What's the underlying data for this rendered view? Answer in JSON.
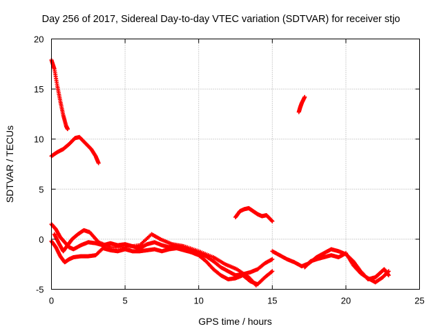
{
  "chart_data": {
    "type": "scatter",
    "title": "Day 256 of 2017, Sidereal Day-to-day VTEC variation (SDTVAR) for receiver stjo",
    "xlabel": "GPS time / hours",
    "ylabel": "SDTVAR / TECUs",
    "xlim": [
      0,
      25
    ],
    "ylim": [
      -5,
      20
    ],
    "xticks": [
      "0",
      "5",
      "10",
      "15",
      "20",
      "25"
    ],
    "yticks": [
      "-5",
      "0",
      "5",
      "10",
      "15",
      "20"
    ],
    "grid": true,
    "marker": "+",
    "color": "#ff0000",
    "series": [
      {
        "name": "upper-decay",
        "x": [
          0.0,
          0.2,
          0.4,
          0.6,
          0.8,
          1.0,
          1.1
        ],
        "y": [
          17.9,
          17.0,
          15.3,
          13.8,
          12.4,
          11.3,
          11.0
        ]
      },
      {
        "name": "arc-8-10",
        "x": [
          0.0,
          0.4,
          0.8,
          1.2,
          1.6,
          1.9,
          2.3,
          2.7,
          3.0,
          3.2
        ],
        "y": [
          8.3,
          8.7,
          9.0,
          9.5,
          10.1,
          10.2,
          9.6,
          9.0,
          8.3,
          7.6
        ]
      },
      {
        "name": "arc-13-14",
        "x": [
          16.8,
          16.9,
          17.0,
          17.2
        ],
        "y": [
          12.7,
          13.2,
          13.6,
          14.2
        ]
      },
      {
        "name": "arc-2-3",
        "x": [
          12.5,
          12.8,
          13.1,
          13.4,
          13.7,
          14.0,
          14.3,
          14.6,
          15.0
        ],
        "y": [
          2.2,
          2.8,
          3.0,
          3.1,
          2.8,
          2.5,
          2.3,
          2.4,
          1.8
        ]
      },
      {
        "name": "negative-band-a",
        "x": [
          0.0,
          0.3,
          0.6,
          0.9,
          1.2,
          1.5,
          2.0,
          2.5,
          3.0,
          3.5,
          4.0,
          4.5,
          5.0,
          5.5,
          6.0,
          6.5,
          7.0,
          7.5,
          8.0,
          8.5,
          9.0,
          9.5,
          10.0,
          10.5,
          11.0,
          11.5,
          12.0,
          12.5,
          13.0,
          13.5,
          14.0,
          14.5,
          15.0
        ],
        "y": [
          1.5,
          1.0,
          0.2,
          -0.3,
          -0.8,
          -1.0,
          -0.6,
          -0.3,
          -0.4,
          -0.6,
          -0.4,
          -0.6,
          -0.5,
          -0.7,
          -0.9,
          -0.5,
          -0.3,
          -0.6,
          -0.8,
          -0.7,
          -1.0,
          -1.1,
          -1.4,
          -1.7,
          -2.2,
          -2.8,
          -3.2,
          -3.6,
          -3.5,
          -3.3,
          -3.0,
          -2.4,
          -2.0
        ]
      },
      {
        "name": "negative-band-b",
        "x": [
          0.0,
          0.3,
          0.6,
          0.9,
          1.2,
          1.5,
          2.0,
          2.5,
          3.0,
          3.5,
          4.0,
          4.5,
          5.0,
          5.5,
          6.0,
          6.5,
          7.0,
          7.5,
          8.0,
          8.5,
          9.0,
          9.5,
          10.0,
          10.5,
          11.0,
          11.5,
          12.0,
          12.5,
          13.0,
          13.5,
          14.0,
          14.5,
          15.0
        ],
        "y": [
          -0.2,
          -0.8,
          -1.7,
          -2.3,
          -2.0,
          -1.8,
          -1.7,
          -1.7,
          -1.6,
          -0.9,
          -1.1,
          -1.2,
          -1.0,
          -1.2,
          -1.2,
          -1.1,
          -1.0,
          -1.2,
          -1.0,
          -0.9,
          -1.1,
          -1.3,
          -1.6,
          -2.2,
          -3.0,
          -3.6,
          -4.0,
          -3.9,
          -3.6,
          -4.2,
          -4.5,
          -3.8,
          -3.2
        ]
      },
      {
        "name": "negative-band-c",
        "x": [
          0.2,
          0.5,
          0.8,
          1.1,
          1.4,
          1.8,
          2.2,
          2.6,
          3.2,
          4.0,
          5.0,
          6.0,
          6.8,
          7.4,
          8.2,
          9.0,
          10.0,
          11.0,
          11.8,
          12.6,
          13.4,
          13.9
        ],
        "y": [
          0.5,
          -0.4,
          -1.2,
          -0.6,
          0.0,
          0.5,
          0.9,
          0.7,
          -0.3,
          -0.8,
          -0.8,
          -0.6,
          0.5,
          0.0,
          -0.5,
          -0.7,
          -1.2,
          -1.8,
          -2.5,
          -3.0,
          -3.8,
          -4.6
        ]
      },
      {
        "name": "late-band",
        "x": [
          15.0,
          15.5,
          16.0,
          16.5,
          17.0,
          17.5,
          18.0,
          18.5,
          19.0,
          19.5,
          20.0,
          20.5,
          21.0,
          21.5,
          22.0,
          22.3,
          22.6,
          22.9
        ],
        "y": [
          -1.2,
          -1.6,
          -2.0,
          -2.3,
          -2.7,
          -2.4,
          -1.8,
          -1.4,
          -1.0,
          -1.2,
          -1.5,
          -2.2,
          -3.2,
          -4.0,
          -3.8,
          -3.4,
          -3.0,
          -3.6
        ]
      },
      {
        "name": "late-band-2",
        "x": [
          17.2,
          17.6,
          18.0,
          18.5,
          19.0,
          19.5,
          20.0,
          20.5,
          21.0,
          21.5,
          22.0,
          22.5,
          22.9
        ],
        "y": [
          -2.8,
          -2.2,
          -2.0,
          -1.8,
          -1.6,
          -1.8,
          -1.4,
          -2.6,
          -3.4,
          -3.9,
          -4.3,
          -3.8,
          -3.2
        ]
      }
    ]
  }
}
